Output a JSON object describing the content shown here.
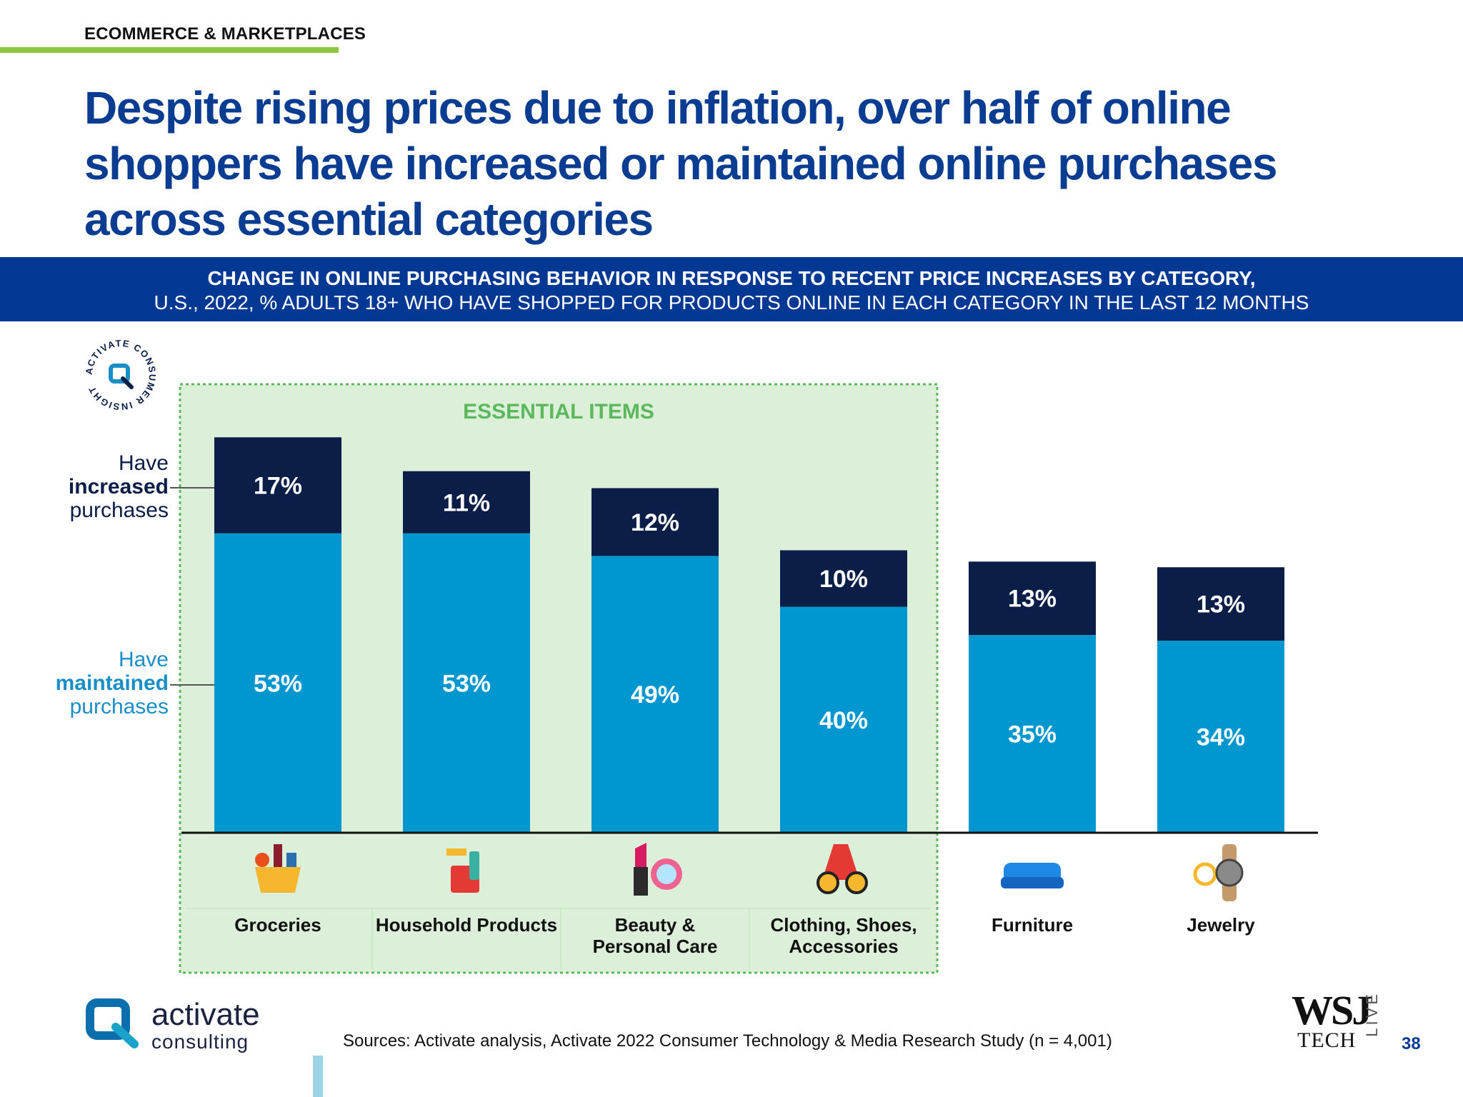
{
  "header": {
    "section_label": "ECOMMERCE & MARKETPLACES",
    "headline": "Despite rising prices due to inflation, over half of online shoppers have increased or maintained online purchases across essential categories"
  },
  "banner": {
    "line1": "CHANGE IN ONLINE PURCHASING BEHAVIOR IN RESPONSE TO RECENT PRICE INCREASES BY CATEGORY,",
    "line2": "U.S., 2022, % ADULTS 18+ WHO HAVE SHOPPED FOR PRODUCTS ONLINE IN EACH CATEGORY IN THE LAST 12 MONTHS"
  },
  "seal": {
    "text": "ACTIVATE CONSUMER INSIGHT",
    "icon": "activate-logo-icon"
  },
  "legend": {
    "increased": {
      "pre": "Have",
      "strong": "increased",
      "post": "purchases",
      "color": "#0b1e48"
    },
    "maintained": {
      "pre": "Have",
      "strong": "maintained",
      "post": "purchases",
      "color": "#1a8fc7"
    }
  },
  "chart_data": {
    "type": "bar",
    "stacked": true,
    "categories": [
      "Groceries",
      "Household Products",
      "Beauty & Personal Care",
      "Clothing, Shoes, Accessories",
      "Furniture",
      "Jewelry"
    ],
    "category_lines": [
      [
        "Groceries"
      ],
      [
        "Household Products"
      ],
      [
        "Beauty &",
        "Personal Care"
      ],
      [
        "Clothing, Shoes,",
        "Accessories"
      ],
      [
        "Furniture"
      ],
      [
        "Jewelry"
      ]
    ],
    "series": [
      {
        "name": "Have maintained purchases",
        "values": [
          53,
          53,
          49,
          40,
          35,
          34
        ],
        "color": "#0096cf"
      },
      {
        "name": "Have increased purchases",
        "values": [
          17,
          11,
          12,
          10,
          13,
          13
        ],
        "color": "#0b1e48"
      }
    ],
    "group_label": "ESSENTIAL ITEMS",
    "group_categories": [
      "Groceries",
      "Household Products",
      "Beauty & Personal Care",
      "Clothing, Shoes, Accessories"
    ],
    "group_color": "#5cb85c",
    "icons": [
      "grocery-basket-icon",
      "cleaning-supplies-icon",
      "lipstick-compact-icon",
      "dress-sunglasses-icon",
      "sofa-icon",
      "watch-ring-icon"
    ],
    "unit": "%",
    "ylim": [
      0,
      70
    ]
  },
  "footer": {
    "brand": "activate",
    "brand_sub": "consulting",
    "sources": "Sources: Activate analysis, Activate 2022 Consumer Technology & Media Research Study (n = 4,001)",
    "wsj": "WSJ",
    "wsj_tech": "TECH",
    "wsj_live": "LIVE",
    "page_number": "38"
  }
}
